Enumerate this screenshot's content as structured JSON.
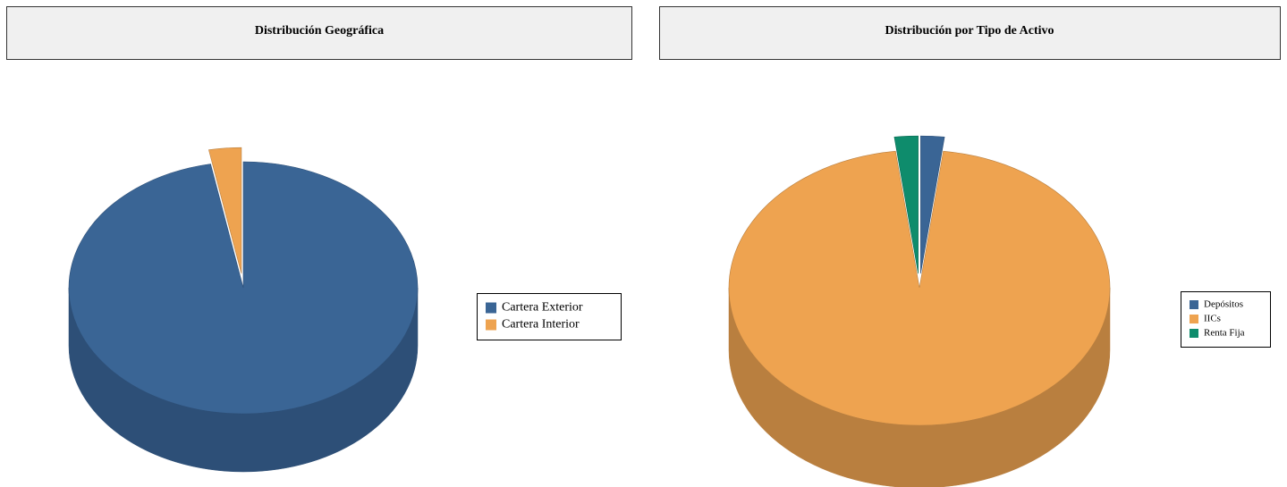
{
  "chart_data": [
    {
      "type": "pie",
      "title": "Distribución Geográfica",
      "categories": [
        "Cartera Exterior",
        "Cartera Interior"
      ],
      "values": [
        97,
        3
      ],
      "colors": [
        "#3a6595",
        "#eea350"
      ],
      "side_colors": [
        "#2d4f77",
        "#b97f3f"
      ],
      "exploded": [
        false,
        true
      ]
    },
    {
      "type": "pie",
      "title": "Distribución por Tipo de Activo",
      "categories": [
        "Depósitos",
        "IICs",
        "Renta Fija"
      ],
      "values": [
        2,
        96,
        2
      ],
      "colors": [
        "#3a6595",
        "#eea350",
        "#0e8c6c"
      ],
      "side_colors": [
        "#2d4f77",
        "#b97f3f",
        "#0a6a52"
      ],
      "exploded": [
        true,
        false,
        true
      ]
    }
  ]
}
